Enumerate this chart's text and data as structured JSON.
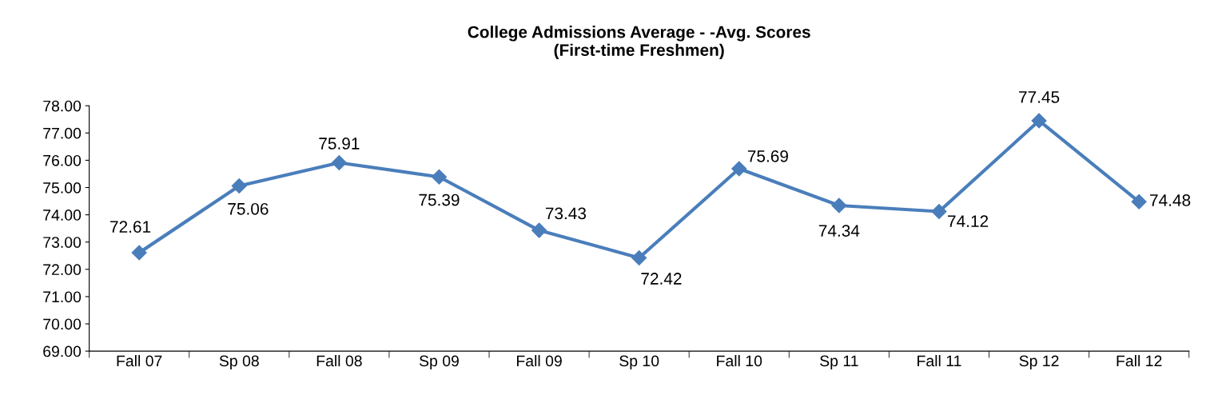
{
  "chart_data": {
    "type": "line",
    "title": "College Admissions Average - -Avg. Scores\n(First-time Freshmen)",
    "categories": [
      "Fall 07",
      "Sp 08",
      "Fall 08",
      "Sp 09",
      "Fall 09",
      "Sp 10",
      "Fall 10",
      "Sp 11",
      "Fall 11",
      "Sp 12",
      "Fall 12"
    ],
    "series": [
      {
        "color": "#4a7ebb",
        "values": [
          72.61,
          75.06,
          75.91,
          75.39,
          73.43,
          72.42,
          75.69,
          74.34,
          74.12,
          77.45,
          74.48
        ]
      }
    ],
    "ylim": [
      69,
      78
    ],
    "yticks": [
      {
        "value": 69,
        "label": "69.00"
      },
      {
        "value": 70,
        "label": "70.00"
      },
      {
        "value": 71,
        "label": "71.00"
      },
      {
        "value": 72,
        "label": "72.00"
      },
      {
        "value": 73,
        "label": "73.00"
      },
      {
        "value": 74,
        "label": "74.00"
      },
      {
        "value": 75,
        "label": "75.00"
      },
      {
        "value": 76,
        "label": "76.00"
      },
      {
        "value": 77,
        "label": "77.00"
      },
      {
        "value": 78,
        "label": "78.00"
      }
    ],
    "grid": false,
    "legend": false,
    "marker": "diamond",
    "line_style": "solid",
    "data_labels": true
  }
}
